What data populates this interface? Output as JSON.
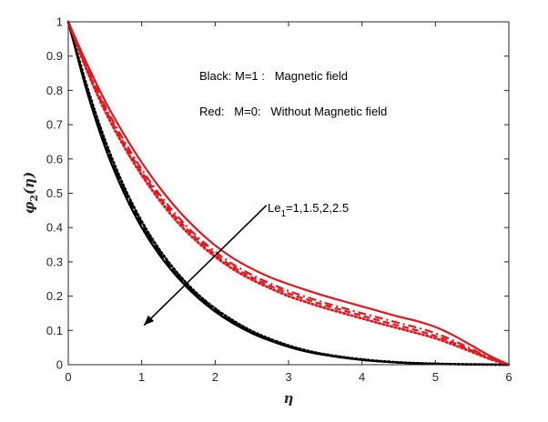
{
  "chart_data": {
    "type": "line",
    "x_range": [
      0,
      6
    ],
    "y_range": [
      0,
      1
    ],
    "x_ticks": [
      "0",
      "1",
      "2",
      "3",
      "4",
      "5",
      "6"
    ],
    "y_ticks": [
      "0",
      "0.1",
      "0.2",
      "0.3",
      "0.4",
      "0.5",
      "0.6",
      "0.7",
      "0.8",
      "0.9",
      "1"
    ],
    "xlabel": "η",
    "ylabel": {
      "main": "φ",
      "sub": "2",
      "arg": "(η)"
    },
    "grid": false,
    "x_samples": [
      0,
      0.25,
      0.5,
      0.75,
      1,
      1.25,
      1.5,
      1.75,
      2,
      2.25,
      2.5,
      2.75,
      3,
      3.25,
      3.5,
      3.75,
      4,
      4.25,
      4.5,
      4.75,
      5,
      5.25,
      5.5,
      5.75,
      6
    ],
    "series": [
      {
        "group": "black",
        "color": "#000000",
        "style": "solid",
        "values": [
          1.0,
          0.8,
          0.635,
          0.505,
          0.4,
          0.318,
          0.252,
          0.198,
          0.155,
          0.12,
          0.092,
          0.07,
          0.052,
          0.038,
          0.028,
          0.02,
          0.014,
          0.0095,
          0.0062,
          0.004,
          0.0025,
          0.0015,
          0.0008,
          0.0003,
          0.0
        ]
      },
      {
        "group": "black",
        "color": "#000000",
        "style": "dashed",
        "values": [
          1.0,
          0.805,
          0.642,
          0.512,
          0.406,
          0.323,
          0.256,
          0.201,
          0.158,
          0.123,
          0.094,
          0.072,
          0.054,
          0.039,
          0.029,
          0.021,
          0.0145,
          0.0098,
          0.0064,
          0.0041,
          0.0026,
          0.0016,
          0.0008,
          0.0003,
          0.0
        ]
      },
      {
        "group": "black",
        "color": "#000000",
        "style": "dashdot",
        "values": [
          1.0,
          0.81,
          0.648,
          0.518,
          0.412,
          0.328,
          0.26,
          0.205,
          0.161,
          0.125,
          0.096,
          0.073,
          0.055,
          0.04,
          0.03,
          0.021,
          0.015,
          0.01,
          0.0066,
          0.0042,
          0.0026,
          0.0016,
          0.0009,
          0.0003,
          0.0
        ]
      },
      {
        "group": "black",
        "color": "#000000",
        "style": "dotted",
        "values": [
          1.0,
          0.815,
          0.655,
          0.524,
          0.418,
          0.333,
          0.264,
          0.208,
          0.164,
          0.128,
          0.098,
          0.075,
          0.056,
          0.041,
          0.03,
          0.022,
          0.0155,
          0.0105,
          0.0068,
          0.0043,
          0.0027,
          0.0016,
          0.0009,
          0.0003,
          0.0
        ]
      },
      {
        "group": "red",
        "color": "#e8141b",
        "style": "solid",
        "values": [
          1.0,
          0.88,
          0.77,
          0.675,
          0.59,
          0.515,
          0.45,
          0.395,
          0.348,
          0.31,
          0.28,
          0.255,
          0.235,
          0.217,
          0.2,
          0.185,
          0.17,
          0.155,
          0.14,
          0.127,
          0.11,
          0.085,
          0.055,
          0.025,
          0.0
        ]
      },
      {
        "group": "red",
        "color": "#e8141b",
        "style": "dashdot",
        "values": [
          1.0,
          0.87,
          0.755,
          0.657,
          0.57,
          0.495,
          0.43,
          0.375,
          0.33,
          0.292,
          0.262,
          0.237,
          0.215,
          0.197,
          0.18,
          0.165,
          0.15,
          0.136,
          0.122,
          0.108,
          0.092,
          0.07,
          0.045,
          0.02,
          0.0
        ]
      },
      {
        "group": "red",
        "color": "#e8141b",
        "style": "dashed",
        "values": [
          1.0,
          0.865,
          0.748,
          0.649,
          0.562,
          0.487,
          0.422,
          0.368,
          0.322,
          0.285,
          0.255,
          0.23,
          0.208,
          0.19,
          0.173,
          0.158,
          0.143,
          0.128,
          0.114,
          0.1,
          0.084,
          0.064,
          0.041,
          0.018,
          0.0
        ]
      },
      {
        "group": "red",
        "color": "#e8141b",
        "style": "dotted",
        "values": [
          1.0,
          0.86,
          0.74,
          0.64,
          0.553,
          0.478,
          0.413,
          0.36,
          0.315,
          0.278,
          0.248,
          0.223,
          0.2,
          0.182,
          0.165,
          0.15,
          0.135,
          0.12,
          0.106,
          0.092,
          0.077,
          0.058,
          0.037,
          0.016,
          0.0
        ]
      }
    ],
    "annotations": {
      "line1": "Black: M=1 :   Magnetic field",
      "line2": "Red:   M=0:   Without Magnetic field",
      "arrow_label": {
        "prefix": "Le",
        "sub": "1",
        "suffix": "=1,1.5,2,2.5"
      },
      "arrow": {
        "from": [
          2.7,
          0.465
        ],
        "to": [
          1.03,
          0.115
        ]
      }
    }
  }
}
